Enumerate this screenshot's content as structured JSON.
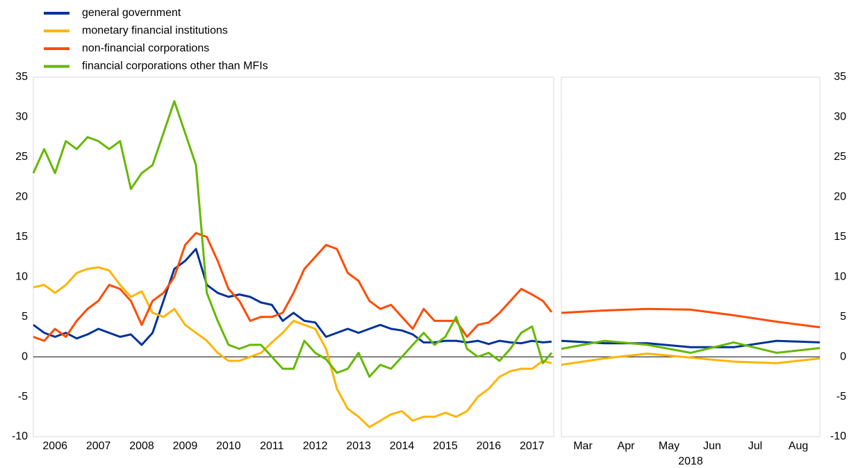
{
  "chart_data": [
    {
      "type": "line",
      "x": [
        2006,
        2006.25,
        2006.5,
        2006.75,
        2007,
        2007.25,
        2007.5,
        2007.75,
        2008,
        2008.25,
        2008.5,
        2008.75,
        2009,
        2009.25,
        2009.5,
        2009.75,
        2010,
        2010.25,
        2010.5,
        2010.75,
        2011,
        2011.25,
        2011.5,
        2011.75,
        2012,
        2012.25,
        2012.5,
        2012.75,
        2013,
        2013.25,
        2013.5,
        2013.75,
        2014,
        2014.25,
        2014.5,
        2014.75,
        2015,
        2015.25,
        2015.5,
        2015.75,
        2016,
        2016.25,
        2016.5,
        2016.75,
        2017,
        2017.25,
        2017.5,
        2017.75,
        2017.95
      ],
      "xlim": [
        2006,
        2018
      ],
      "xticks": [
        {
          "value": 2006.5,
          "label": "2006"
        },
        {
          "value": 2007.5,
          "label": "2007"
        },
        {
          "value": 2008.5,
          "label": "2008"
        },
        {
          "value": 2009.5,
          "label": "2009"
        },
        {
          "value": 2010.5,
          "label": "2010"
        },
        {
          "value": 2011.5,
          "label": "2011"
        },
        {
          "value": 2012.5,
          "label": "2012"
        },
        {
          "value": 2013.5,
          "label": "2013"
        },
        {
          "value": 2014.5,
          "label": "2014"
        },
        {
          "value": 2015.5,
          "label": "2015"
        },
        {
          "value": 2016.5,
          "label": "2016"
        },
        {
          "value": 2017.5,
          "label": "2017"
        }
      ],
      "ylim": [
        -10,
        35
      ],
      "yticks": [
        -10,
        -5,
        0,
        5,
        10,
        15,
        20,
        25,
        30,
        35
      ],
      "series": [
        {
          "name": "general government",
          "color": "#003299",
          "values": [
            4,
            3,
            2.5,
            3,
            2.3,
            2.8,
            3.5,
            3,
            2.5,
            2.8,
            1.5,
            3,
            7,
            11,
            12,
            13.5,
            9,
            8,
            7.5,
            7.8,
            7.5,
            6.8,
            6.5,
            4.5,
            5.5,
            4.5,
            4.3,
            2.5,
            3,
            3.5,
            3,
            3.5,
            4,
            3.5,
            3.3,
            2.8,
            1.8,
            1.8,
            2,
            2,
            1.8,
            2,
            1.6,
            2,
            1.8,
            1.7,
            2,
            1.8,
            1.9
          ]
        },
        {
          "name": "monetary financial institutions",
          "color": "#ffb400",
          "values": [
            8.7,
            9,
            8,
            9,
            10.5,
            11,
            11.2,
            10.8,
            9,
            7.5,
            8.2,
            5.5,
            5,
            6,
            4,
            3,
            2,
            0.5,
            -0.5,
            -0.5,
            0,
            0.5,
            1.8,
            3,
            4.5,
            4,
            3.5,
            1,
            -4,
            -6.5,
            -7.5,
            -8.8,
            -8,
            -7.2,
            -6.8,
            -8,
            -7.5,
            -7.5,
            -7,
            -7.5,
            -6.8,
            -5,
            -4,
            -2.5,
            -1.8,
            -1.5,
            -1.5,
            -0.5,
            -0.8
          ]
        },
        {
          "name": "non-financial corporations",
          "color": "#ff4b00",
          "values": [
            2.5,
            2,
            3.5,
            2.5,
            4.5,
            6,
            7,
            9,
            8.5,
            7,
            4,
            7,
            8,
            10,
            14,
            15.5,
            15,
            12,
            8.5,
            7,
            4.5,
            5,
            5,
            5.5,
            8,
            11,
            12.5,
            14,
            13.5,
            10.5,
            9.5,
            7,
            6,
            6.5,
            5,
            3.5,
            6,
            4.5,
            4.5,
            4.5,
            2.5,
            4,
            4.3,
            5.5,
            7,
            8.5,
            7.8,
            7,
            5.6
          ]
        },
        {
          "name": "financial corporations other than MFIs",
          "color": "#65b800",
          "values": [
            23,
            26,
            23,
            27,
            26,
            27.5,
            27,
            26,
            27,
            21,
            23,
            24,
            28,
            32,
            28,
            24,
            8,
            4.5,
            1.5,
            1,
            1.5,
            1.5,
            0,
            -1.5,
            -1.5,
            2,
            0.5,
            -0.3,
            -2,
            -1.5,
            0.5,
            -2.5,
            -1,
            -1.5,
            0,
            1.5,
            3,
            1.5,
            2.5,
            5,
            1,
            0,
            0.5,
            -0.5,
            1,
            3,
            3.8,
            -0.8,
            0.5
          ]
        }
      ]
    },
    {
      "type": "line",
      "x": [
        0,
        1,
        2,
        3,
        4,
        5,
        6
      ],
      "xlim": [
        0,
        6
      ],
      "xticks": [
        {
          "value": 0.5,
          "label": "Mar"
        },
        {
          "value": 1.5,
          "label": "Apr"
        },
        {
          "value": 2.5,
          "label": "May"
        },
        {
          "value": 3.5,
          "label": "Jun"
        },
        {
          "value": 4.5,
          "label": "Jul"
        },
        {
          "value": 5.5,
          "label": "Aug"
        }
      ],
      "xlabel": "2018",
      "ylim": [
        -10,
        35
      ],
      "yticks": [
        -10,
        -5,
        0,
        5,
        10,
        15,
        20,
        25,
        30,
        35
      ],
      "series": [
        {
          "color": "#003299",
          "values": [
            2.0,
            1.7,
            1.7,
            1.2,
            1.2,
            2.0,
            1.8
          ]
        },
        {
          "color": "#ffb400",
          "values": [
            -1.0,
            -0.2,
            0.4,
            -0.1,
            -0.6,
            -0.8,
            -0.2
          ]
        },
        {
          "color": "#ff4b00",
          "values": [
            5.5,
            5.8,
            6.0,
            5.9,
            5.2,
            4.4,
            3.7
          ]
        },
        {
          "color": "#65b800",
          "values": [
            1.0,
            2.0,
            1.5,
            0.5,
            1.8,
            0.5,
            1.1
          ]
        }
      ]
    }
  ]
}
